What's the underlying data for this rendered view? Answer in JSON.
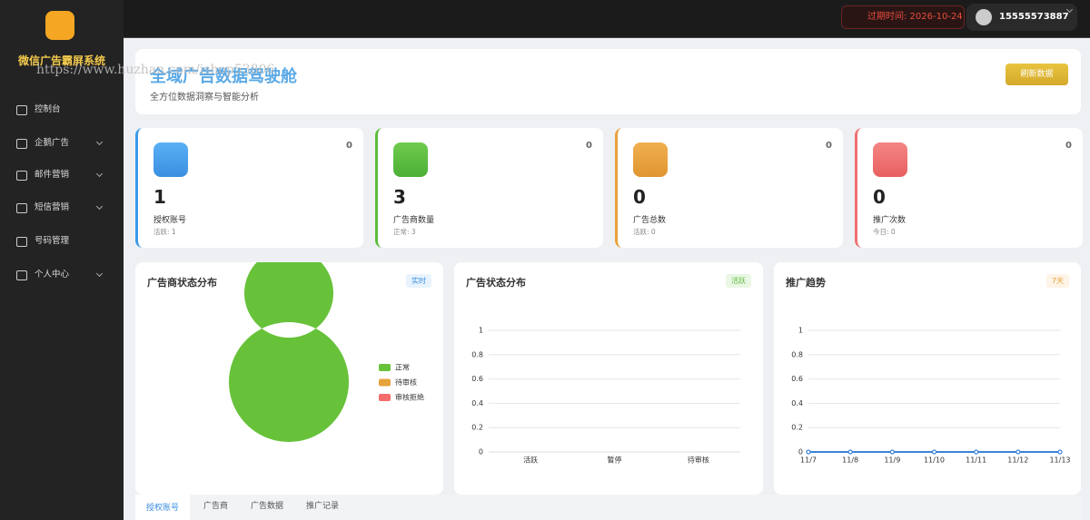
{
  "sidebar": {
    "brand": "微信广告霸屏系统",
    "watermark": "https://www.huzhan.com/ishop53806",
    "menu": [
      "控制台",
      "企鹅广告",
      "邮件营销",
      "短信营销",
      "号码管理",
      "个人中心"
    ]
  },
  "header": {
    "expiry": "过期时间: 2026-10-24",
    "user": "15555573887"
  },
  "banner": {
    "title": "全域广告数据驾驶舱",
    "subtitle": "全方位数据洞察与智能分析",
    "button": "刷新数据"
  },
  "stats": [
    {
      "badge": 0,
      "value": 1,
      "label": "授权账号",
      "sub": "活跃: 1"
    },
    {
      "badge": 0,
      "value": 3,
      "label": "广告商数量",
      "sub": "正常: 3"
    },
    {
      "badge": 0,
      "value": 0,
      "label": "广告总数",
      "sub": "活跃: 0"
    },
    {
      "badge": 0,
      "value": 0,
      "label": "推广次数",
      "sub": "今日: 0"
    }
  ],
  "chart_data": [
    {
      "type": "pie",
      "title": "广告商状态分布",
      "tag": "实时",
      "categories": [
        "正常",
        "待审核",
        "审核拒绝"
      ],
      "values": [
        3,
        0,
        0
      ],
      "colors": [
        "#67c23a",
        "#e6a23c",
        "#f56c6c"
      ]
    },
    {
      "type": "bar",
      "title": "广告状态分布",
      "tag": "活跃",
      "categories": [
        "活跃",
        "暂停",
        "待审核"
      ],
      "values": [
        0,
        0,
        0
      ],
      "color": "#67c23a",
      "ylim": [
        0,
        1
      ],
      "yticks": [
        0,
        0.2,
        0.4,
        0.6,
        0.8,
        1
      ],
      "grid": true
    },
    {
      "type": "line",
      "title": "推广趋势",
      "tag": "7天",
      "categories": [
        "11/7",
        "11/8",
        "11/9",
        "11/10",
        "11/11",
        "11/12",
        "11/13"
      ],
      "values": [
        0,
        0,
        0,
        0,
        0,
        0,
        0
      ],
      "color": "#3b82d6",
      "ylim": [
        0,
        1
      ],
      "yticks": [
        0,
        0.2,
        0.4,
        0.6,
        0.8,
        1
      ],
      "grid": true
    }
  ],
  "tabs": [
    "授权账号",
    "广告商",
    "广告数据",
    "推广记录"
  ]
}
